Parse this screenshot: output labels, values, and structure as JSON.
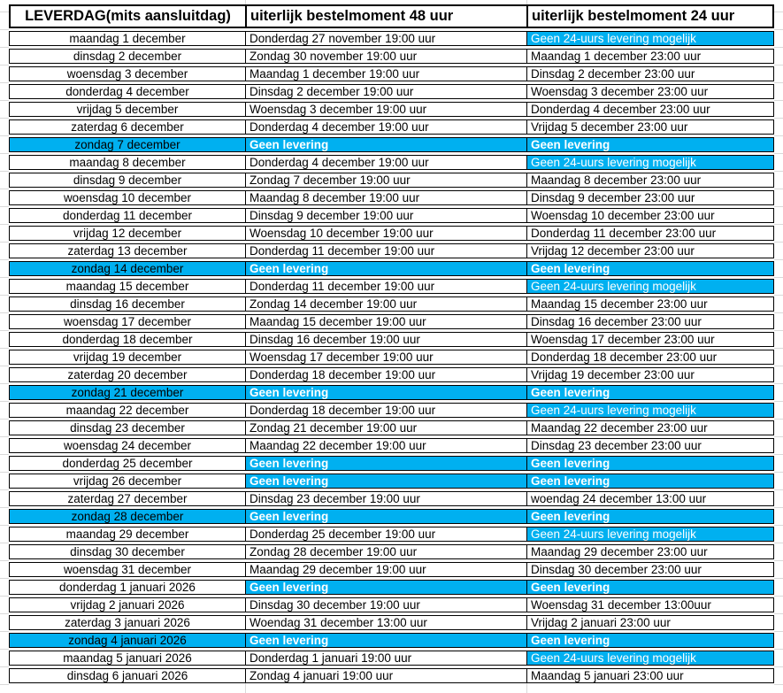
{
  "colors": {
    "highlight": "#00b0f0",
    "border": "#000000",
    "gridline": "#d9d9d9",
    "header_text": "#000000",
    "highlight_text": "#ffffff"
  },
  "table": {
    "headers": [
      {
        "label": "LEVERDAG(mits aansluitdag)"
      },
      {
        "label": "uiterlijk bestelmoment 48 uur"
      },
      {
        "label": "uiterlijk bestelmoment 24 uur"
      }
    ],
    "rows": [
      {
        "leverdag": {
          "t": "maandag 1 december",
          "hl": false,
          "bold": false
        },
        "m48": {
          "t": "Donderdag 27 november 19:00 uur",
          "hl": false,
          "bold": false
        },
        "m24": {
          "t": "Geen 24-uurs levering mogelijk",
          "hl": true,
          "bold": false
        }
      },
      {
        "leverdag": {
          "t": "dinsdag 2 december",
          "hl": false,
          "bold": false
        },
        "m48": {
          "t": "Zondag 30 november 19:00 uur",
          "hl": false,
          "bold": false
        },
        "m24": {
          "t": "Maandag 1 december 23:00 uur",
          "hl": false,
          "bold": false
        }
      },
      {
        "leverdag": {
          "t": "woensdag 3 december",
          "hl": false,
          "bold": false
        },
        "m48": {
          "t": "Maandag 1 december 19:00 uur",
          "hl": false,
          "bold": false
        },
        "m24": {
          "t": "Dinsdag 2 december 23:00 uur",
          "hl": false,
          "bold": false
        }
      },
      {
        "leverdag": {
          "t": "donderdag 4 december",
          "hl": false,
          "bold": false
        },
        "m48": {
          "t": "Dinsdag 2 december 19:00 uur",
          "hl": false,
          "bold": false
        },
        "m24": {
          "t": "Woensdag 3 december 23:00 uur",
          "hl": false,
          "bold": false
        }
      },
      {
        "leverdag": {
          "t": "vrijdag 5 december",
          "hl": false,
          "bold": false
        },
        "m48": {
          "t": "Woensdag 3 december 19:00 uur",
          "hl": false,
          "bold": false
        },
        "m24": {
          "t": "Donderdag 4 december 23:00 uur",
          "hl": false,
          "bold": false
        }
      },
      {
        "leverdag": {
          "t": "zaterdag 6 december",
          "hl": false,
          "bold": false
        },
        "m48": {
          "t": "Donderdag 4 december 19:00 uur",
          "hl": false,
          "bold": false
        },
        "m24": {
          "t": "Vrijdag 5 december 23:00 uur",
          "hl": false,
          "bold": false
        }
      },
      {
        "leverdag": {
          "t": "zondag 7 december",
          "hl": true,
          "bold": false
        },
        "m48": {
          "t": "Geen levering",
          "hl": true,
          "bold": true
        },
        "m24": {
          "t": "Geen levering",
          "hl": true,
          "bold": true
        }
      },
      {
        "leverdag": {
          "t": "maandag 8 december",
          "hl": false,
          "bold": false
        },
        "m48": {
          "t": "Donderdag 4 december 19:00 uur",
          "hl": false,
          "bold": false
        },
        "m24": {
          "t": "Geen 24-uurs levering mogelijk",
          "hl": true,
          "bold": false
        }
      },
      {
        "leverdag": {
          "t": "dinsdag 9 december",
          "hl": false,
          "bold": false
        },
        "m48": {
          "t": "Zondag 7 december 19:00 uur",
          "hl": false,
          "bold": false
        },
        "m24": {
          "t": "Maandag 8 december 23:00 uur",
          "hl": false,
          "bold": false
        }
      },
      {
        "leverdag": {
          "t": "woensdag 10 december",
          "hl": false,
          "bold": false
        },
        "m48": {
          "t": "Maandag 8 december 19:00 uur",
          "hl": false,
          "bold": false
        },
        "m24": {
          "t": "Dinsdag 9 december 23:00 uur",
          "hl": false,
          "bold": false
        }
      },
      {
        "leverdag": {
          "t": "donderdag 11 december",
          "hl": false,
          "bold": false
        },
        "m48": {
          "t": "Dinsdag 9 december 19:00 uur",
          "hl": false,
          "bold": false
        },
        "m24": {
          "t": "Woensdag 10 december 23:00 uur",
          "hl": false,
          "bold": false
        }
      },
      {
        "leverdag": {
          "t": "vrijdag 12 december",
          "hl": false,
          "bold": false
        },
        "m48": {
          "t": "Woensdag 10 december 19:00 uur",
          "hl": false,
          "bold": false
        },
        "m24": {
          "t": "Donderdag 11 december 23:00 uur",
          "hl": false,
          "bold": false
        }
      },
      {
        "leverdag": {
          "t": "zaterdag 13 december",
          "hl": false,
          "bold": false
        },
        "m48": {
          "t": "Donderdag 11 december 19:00 uur",
          "hl": false,
          "bold": false
        },
        "m24": {
          "t": "Vrijdag 12 december 23:00 uur",
          "hl": false,
          "bold": false
        }
      },
      {
        "leverdag": {
          "t": "zondag 14 december",
          "hl": true,
          "bold": false
        },
        "m48": {
          "t": "Geen levering",
          "hl": true,
          "bold": true
        },
        "m24": {
          "t": "Geen levering",
          "hl": true,
          "bold": true
        }
      },
      {
        "leverdag": {
          "t": "maandag 15 december",
          "hl": false,
          "bold": false
        },
        "m48": {
          "t": "Donderdag 11 december 19:00 uur",
          "hl": false,
          "bold": false
        },
        "m24": {
          "t": "Geen 24-uurs levering mogelijk",
          "hl": true,
          "bold": false
        }
      },
      {
        "leverdag": {
          "t": "dinsdag 16 december",
          "hl": false,
          "bold": false
        },
        "m48": {
          "t": "Zondag 14 december 19:00 uur",
          "hl": false,
          "bold": false
        },
        "m24": {
          "t": "Maandag 15 december 23:00 uur",
          "hl": false,
          "bold": false
        }
      },
      {
        "leverdag": {
          "t": "woensdag 17 december",
          "hl": false,
          "bold": false
        },
        "m48": {
          "t": "Maandag 15 december 19:00 uur",
          "hl": false,
          "bold": false
        },
        "m24": {
          "t": "Dinsdag 16 december 23:00 uur",
          "hl": false,
          "bold": false
        }
      },
      {
        "leverdag": {
          "t": "donderdag 18 december",
          "hl": false,
          "bold": false
        },
        "m48": {
          "t": "Dinsdag 16 december 19:00 uur",
          "hl": false,
          "bold": false
        },
        "m24": {
          "t": "Woensdag 17 december 23:00 uur",
          "hl": false,
          "bold": false
        }
      },
      {
        "leverdag": {
          "t": "vrijdag 19 december",
          "hl": false,
          "bold": false
        },
        "m48": {
          "t": "Woensdag 17 december 19:00 uur",
          "hl": false,
          "bold": false
        },
        "m24": {
          "t": "Donderdag 18 december 23:00 uur",
          "hl": false,
          "bold": false
        }
      },
      {
        "leverdag": {
          "t": "zaterdag 20 december",
          "hl": false,
          "bold": false
        },
        "m48": {
          "t": "Donderdag 18 december 19:00 uur",
          "hl": false,
          "bold": false
        },
        "m24": {
          "t": "Vrijdag 19 december 23:00 uur",
          "hl": false,
          "bold": false
        }
      },
      {
        "leverdag": {
          "t": "zondag 21 december",
          "hl": true,
          "bold": false
        },
        "m48": {
          "t": "Geen levering",
          "hl": true,
          "bold": true
        },
        "m24": {
          "t": "Geen levering",
          "hl": true,
          "bold": true
        }
      },
      {
        "leverdag": {
          "t": "maandag 22 december",
          "hl": false,
          "bold": false
        },
        "m48": {
          "t": "Donderdag 18 december 19:00 uur",
          "hl": false,
          "bold": false
        },
        "m24": {
          "t": "Geen 24-uurs levering mogelijk",
          "hl": true,
          "bold": false
        }
      },
      {
        "leverdag": {
          "t": "dinsdag 23 december",
          "hl": false,
          "bold": false
        },
        "m48": {
          "t": "Zondag 21 december 19:00 uur",
          "hl": false,
          "bold": false
        },
        "m24": {
          "t": "Maandag 22 december 23:00 uur",
          "hl": false,
          "bold": false
        }
      },
      {
        "leverdag": {
          "t": "woensdag 24 december",
          "hl": false,
          "bold": false
        },
        "m48": {
          "t": "Maandag 22 december 19:00 uur",
          "hl": false,
          "bold": false
        },
        "m24": {
          "t": "Dinsdag 23 december 23:00 uur",
          "hl": false,
          "bold": false
        }
      },
      {
        "leverdag": {
          "t": "donderdag 25 december",
          "hl": false,
          "bold": false
        },
        "m48": {
          "t": "Geen levering",
          "hl": true,
          "bold": true
        },
        "m24": {
          "t": "Geen levering",
          "hl": true,
          "bold": true
        }
      },
      {
        "leverdag": {
          "t": "vrijdag 26 december",
          "hl": false,
          "bold": false
        },
        "m48": {
          "t": "Geen levering",
          "hl": true,
          "bold": true
        },
        "m24": {
          "t": "Geen levering",
          "hl": true,
          "bold": true
        }
      },
      {
        "leverdag": {
          "t": "zaterdag 27 december",
          "hl": false,
          "bold": false
        },
        "m48": {
          "t": "Dinsdag 23 december 19:00 uur",
          "hl": false,
          "bold": false
        },
        "m24": {
          "t": "woendag 24 december 13:00 uur",
          "hl": false,
          "bold": false
        }
      },
      {
        "leverdag": {
          "t": "zondag 28 december",
          "hl": true,
          "bold": false
        },
        "m48": {
          "t": "Geen levering",
          "hl": true,
          "bold": true
        },
        "m24": {
          "t": "Geen levering",
          "hl": true,
          "bold": true
        }
      },
      {
        "leverdag": {
          "t": "maandag 29 december",
          "hl": false,
          "bold": false
        },
        "m48": {
          "t": "Donderdag 25 december 19:00 uur",
          "hl": false,
          "bold": false
        },
        "m24": {
          "t": "Geen 24-uurs levering mogelijk",
          "hl": true,
          "bold": false
        }
      },
      {
        "leverdag": {
          "t": "dinsdag 30 december",
          "hl": false,
          "bold": false
        },
        "m48": {
          "t": "Zondag 28 december 19:00 uur",
          "hl": false,
          "bold": false
        },
        "m24": {
          "t": "Maandag 29 december 23:00 uur",
          "hl": false,
          "bold": false
        }
      },
      {
        "leverdag": {
          "t": "woensdag 31 december",
          "hl": false,
          "bold": false
        },
        "m48": {
          "t": "Maandag 29 december 19:00 uur",
          "hl": false,
          "bold": false
        },
        "m24": {
          "t": "Dinsdag 30 december 23:00 uur",
          "hl": false,
          "bold": false
        }
      },
      {
        "leverdag": {
          "t": "donderdag 1 januari 2026",
          "hl": false,
          "bold": false
        },
        "m48": {
          "t": "Geen levering",
          "hl": true,
          "bold": true
        },
        "m24": {
          "t": "Geen levering",
          "hl": true,
          "bold": true
        }
      },
      {
        "leverdag": {
          "t": "vrijdag 2 januari 2026",
          "hl": false,
          "bold": false
        },
        "m48": {
          "t": "Dinsdag 30 december 19:00 uur",
          "hl": false,
          "bold": false
        },
        "m24": {
          "t": "Woensdag 31 december 13:00uur",
          "hl": false,
          "bold": false
        }
      },
      {
        "leverdag": {
          "t": "zaterdag 3 januari 2026",
          "hl": false,
          "bold": false
        },
        "m48": {
          "t": "Woendag 31 december 13:00 uur",
          "hl": false,
          "bold": false
        },
        "m24": {
          "t": "Vrijdag 2 januari 23:00 uur",
          "hl": false,
          "bold": false
        }
      },
      {
        "leverdag": {
          "t": "zondag 4 januari 2026",
          "hl": true,
          "bold": false
        },
        "m48": {
          "t": "Geen levering",
          "hl": true,
          "bold": true
        },
        "m24": {
          "t": "Geen levering",
          "hl": true,
          "bold": true
        }
      },
      {
        "leverdag": {
          "t": "maandag 5 januari 2026",
          "hl": false,
          "bold": false
        },
        "m48": {
          "t": "Donderdag 1 januari 19:00 uur",
          "hl": false,
          "bold": false
        },
        "m24": {
          "t": "Geen 24-uurs levering mogelijk",
          "hl": true,
          "bold": false
        }
      },
      {
        "leverdag": {
          "t": "dinsdag 6 januari 2026",
          "hl": false,
          "bold": false
        },
        "m48": {
          "t": "Zondag 4 januari 19:00 uur",
          "hl": false,
          "bold": false
        },
        "m24": {
          "t": "Maandag 5 januari 23:00 uur",
          "hl": false,
          "bold": false
        }
      }
    ]
  }
}
